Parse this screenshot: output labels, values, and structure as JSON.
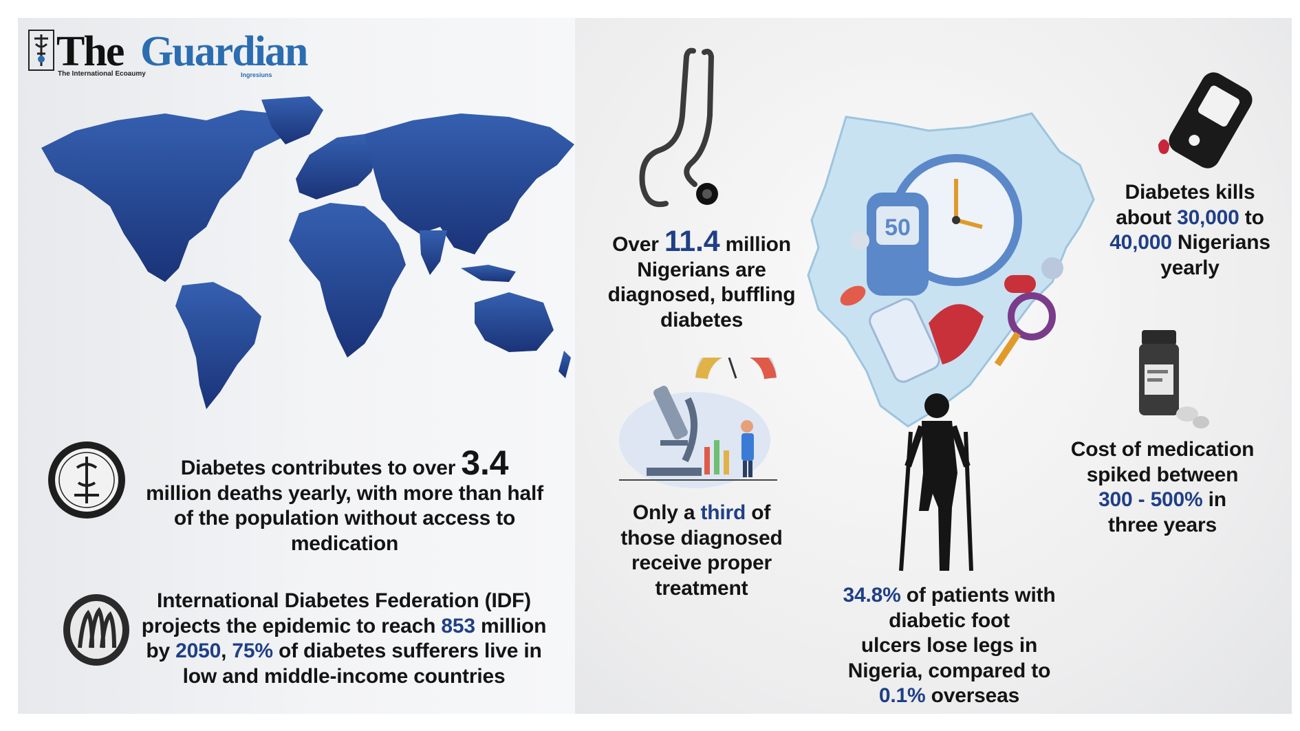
{
  "brand": {
    "name_part1": "The",
    "name_part2": "Guardian",
    "tagline": "The International Ecoaumy",
    "tag_right": "Ingresiuns"
  },
  "stats": {
    "deaths": {
      "line1": "Diabetes contributes to over",
      "value": "3.4",
      "line2": "million deaths yearly, with more than half",
      "line3": "of the population without access to",
      "line4": "medication"
    },
    "idf": {
      "line1": "International Diabetes Federation (IDF)",
      "line2_pre": "projects the epidemic to reach",
      "line2_value": "853",
      "line2_post": "million",
      "line3_pre": "by",
      "line3_year": "2050",
      "line3_sep": ",",
      "line3_pct": "75%",
      "line3_post": "of diabetes sufferers live in",
      "line4": "low and middle-income countries"
    },
    "diagnosed": {
      "pre": "Over",
      "value": "11.4",
      "post": "million",
      "line2": "Nigerians are",
      "line3": "diagnosed, buffling",
      "line4": "diabetes"
    },
    "treatment": {
      "pre": "Only a",
      "value": "third",
      "post": "of",
      "line2": "those diagnosed",
      "line3": "receive proper",
      "line4": "treatment"
    },
    "kills": {
      "line1": "Diabetes kills",
      "pre": "about",
      "value1": "30,000",
      "mid": "to",
      "value2": "40,000",
      "post": "Nigerians",
      "line4": "yearly"
    },
    "cost": {
      "line1": "Cost of medication",
      "line2": "spiked between",
      "value": "300 - 500%",
      "post": "in",
      "line4": "three years"
    },
    "foot": {
      "value1": "34.8%",
      "post1": "of patients with",
      "line2": "diabetic foot",
      "line3": "ulcers lose legs in",
      "line4": "Nigeria, compared to",
      "value2": "0.1%",
      "post2": "overseas"
    }
  },
  "icons": {
    "world_map": "world-map-icon",
    "stethoscope": "stethoscope-icon",
    "microscope": "microscope-lab-icon",
    "nigeria_map": "nigeria-map-icon",
    "glucose_meter": "glucose-meter-icon",
    "medicine_bottle": "medicine-bottle-icon",
    "amputee": "amputee-on-crutches-icon",
    "seal1": "emblem-seal-icon",
    "seal2": "idf-seal-icon"
  },
  "colors": {
    "highlight": "#1f3f86",
    "map_blue": "#1e3c8a",
    "nigeria_fill": "#c8e2f2"
  }
}
